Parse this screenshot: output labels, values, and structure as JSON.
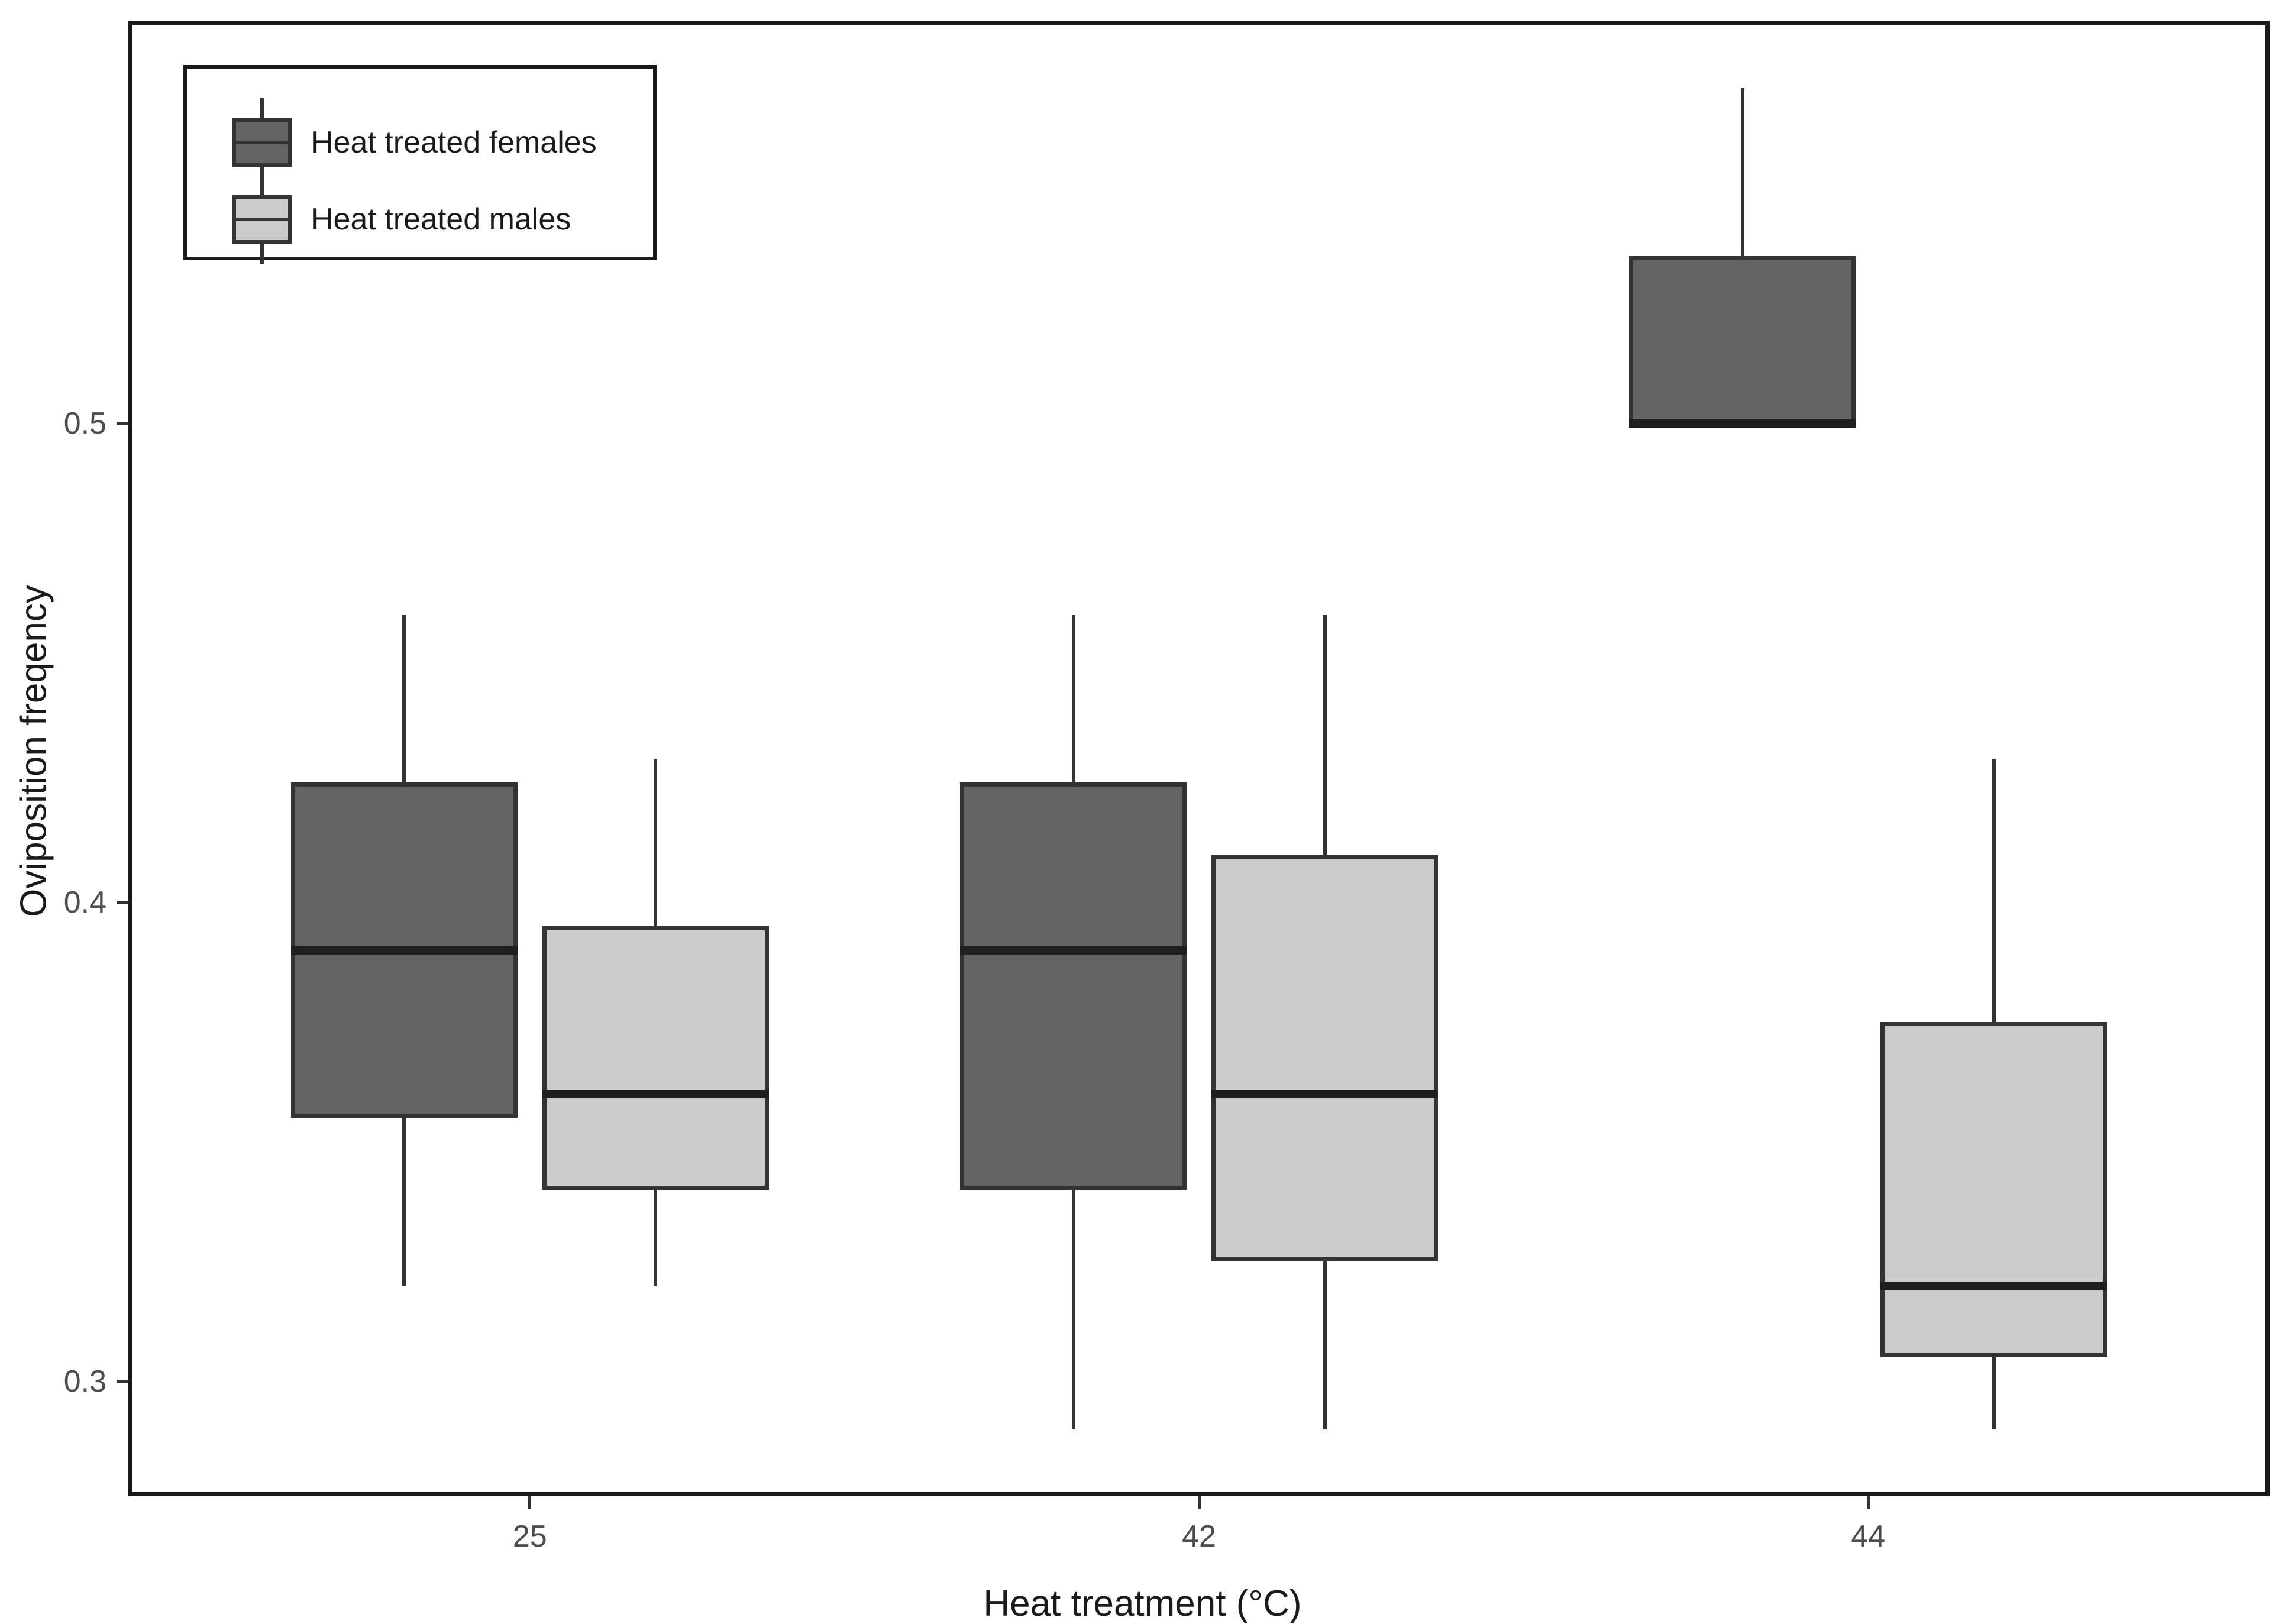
{
  "figure": {
    "background": "#ffffff"
  },
  "chart_data": {
    "type": "boxplot",
    "title": "",
    "xlabel": "Heat treatment (°C)",
    "ylabel": "Oviposition freqency",
    "categories": [
      "25",
      "42",
      "44"
    ],
    "y_axis": {
      "ticks": [
        0.5,
        0.4,
        0.3
      ],
      "tick_labels": [
        "0.5",
        "0.4",
        "0.3"
      ],
      "ylim": [
        0.276,
        0.584
      ],
      "grid": false
    },
    "legend": {
      "position": "top-left",
      "entries": [
        {
          "label": "Heat treated females",
          "color": "#646464"
        },
        {
          "label": "Heat treated males",
          "color": "#cbcbcb"
        }
      ]
    },
    "series": [
      {
        "name": "Heat treated females",
        "fill": "#646464",
        "boxes": [
          {
            "category": "25",
            "whisker_low": 0.32,
            "q1": 0.355,
            "median": 0.39,
            "q3": 0.425,
            "whisker_high": 0.46
          },
          {
            "category": "42",
            "whisker_low": 0.29,
            "q1": 0.34,
            "median": 0.39,
            "q3": 0.425,
            "whisker_high": 0.46
          },
          {
            "category": "44",
            "whisker_low": 0.5,
            "q1": 0.5,
            "median": 0.5,
            "q3": 0.535,
            "whisker_high": 0.57
          }
        ]
      },
      {
        "name": "Heat treated males",
        "fill": "#cbcbcb",
        "boxes": [
          {
            "category": "25",
            "whisker_low": 0.32,
            "q1": 0.34,
            "median": 0.36,
            "q3": 0.395,
            "whisker_high": 0.43
          },
          {
            "category": "42",
            "whisker_low": 0.29,
            "q1": 0.325,
            "median": 0.36,
            "q3": 0.41,
            "whisker_high": 0.46
          },
          {
            "category": "44",
            "whisker_low": 0.29,
            "q1": 0.305,
            "median": 0.32,
            "q3": 0.375,
            "whisker_high": 0.43
          }
        ]
      }
    ],
    "style": {
      "box_border": "#333333",
      "median_color": "#1f1f1f",
      "whisker_color": "#333333",
      "axis_color": "#1a1a1a",
      "tick_label_color": "#4d4d4d",
      "plot_border": "#1a1a1a"
    }
  }
}
